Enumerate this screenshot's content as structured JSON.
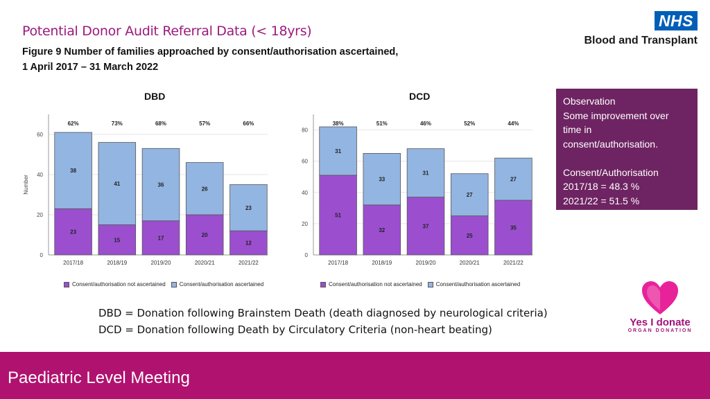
{
  "header": {
    "title": "Potential Donor Audit Referral Data (< 18yrs)",
    "figure_line1": "Figure 9  Number of families approached by consent/authorisation ascertained,",
    "figure_line2": "1 April 2017 – 31 March 2022"
  },
  "logo": {
    "nhs": "NHS",
    "org": "Blood and Transplant"
  },
  "observation": {
    "line1": "Observation",
    "line2": "Some improvement over",
    "line3": "time in",
    "line4": "consent/authorisation.",
    "line5": "Consent/Authorisation",
    "line6": "2017/18 = 48.3 %",
    "line7": "2021/22 = 51.5 %"
  },
  "definitions": {
    "dbd": "DBD = Donation following Brainstem Death (death diagnosed by neurological criteria)",
    "dcd": "DCD = Donation following Death by Circulatory Criteria (non-heart beating)"
  },
  "footer": {
    "label": "Paediatric Level Meeting"
  },
  "campaign": {
    "text": "Yes I donate",
    "sub": "ORGAN DONATION"
  },
  "colors": {
    "not_ascertained": "#9b4fcf",
    "ascertained": "#93b5e1",
    "accent": "#b0126f",
    "obs_bg": "#6e2462"
  },
  "chart_data": [
    {
      "type": "bar",
      "title": "DBD",
      "ylabel": "Number",
      "categories": [
        "2017/18",
        "2018/19",
        "2019/20",
        "2020/21",
        "2021/22"
      ],
      "series": [
        {
          "name": "Consent/authorisation not ascertained",
          "values": [
            23,
            15,
            17,
            20,
            12
          ]
        },
        {
          "name": "Consent/authorisation ascertained",
          "values": [
            38,
            41,
            36,
            26,
            23
          ]
        }
      ],
      "percent_labels": [
        "62%",
        "73%",
        "68%",
        "57%",
        "66%"
      ],
      "ylim": [
        0,
        70
      ],
      "yticks": [
        0,
        20,
        40,
        60
      ],
      "stacked": true
    },
    {
      "type": "bar",
      "title": "DCD",
      "ylabel": "",
      "categories": [
        "2017/18",
        "2018/19",
        "2019/20",
        "2020/21",
        "2021/22"
      ],
      "series": [
        {
          "name": "Consent/authorisation not ascertained",
          "values": [
            51,
            32,
            37,
            25,
            35
          ]
        },
        {
          "name": "Consent/authorisation ascertained",
          "values": [
            31,
            33,
            31,
            27,
            27
          ]
        }
      ],
      "percent_labels": [
        "38%",
        "51%",
        "46%",
        "52%",
        "44%"
      ],
      "ylim": [
        0,
        90
      ],
      "yticks": [
        0,
        20,
        40,
        60,
        80
      ],
      "stacked": true
    }
  ]
}
